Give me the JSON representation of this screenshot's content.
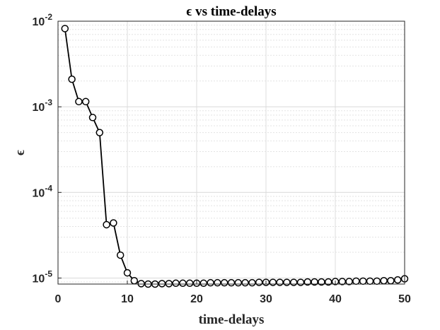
{
  "chart_data": {
    "type": "line",
    "title": "ϵ vs time-delays",
    "xlabel": "time-delays",
    "ylabel": "ϵ",
    "xlim": [
      0,
      50
    ],
    "ylim": [
      8.5e-06,
      0.01
    ],
    "yscale": "log",
    "grid": true,
    "x_ticks": [
      "0",
      "10",
      "20",
      "30",
      "40",
      "50"
    ],
    "y_ticks": [
      {
        "value": 1e-05,
        "base": "10",
        "exp": "-5"
      },
      {
        "value": 0.0001,
        "base": "10",
        "exp": "-4"
      },
      {
        "value": 0.001,
        "base": "10",
        "exp": "-3"
      },
      {
        "value": 0.01,
        "base": "10",
        "exp": "-2"
      }
    ],
    "marker": "open-circle",
    "line_color": "#000000",
    "series": [
      {
        "x": [
          1,
          2,
          3,
          4,
          5,
          6,
          7,
          8,
          9,
          10,
          11,
          12,
          13,
          14,
          15,
          16,
          17,
          18,
          19,
          20,
          21,
          22,
          23,
          24,
          25,
          26,
          27,
          28,
          29,
          30,
          31,
          32,
          33,
          34,
          35,
          36,
          37,
          38,
          39,
          40,
          41,
          42,
          43,
          44,
          45,
          46,
          47,
          48,
          49,
          50
        ],
        "values": [
          0.0082,
          0.0021,
          0.00115,
          0.00115,
          0.00075,
          0.0005,
          4.2e-05,
          4.4e-05,
          1.85e-05,
          1.15e-05,
          9.3e-06,
          8.6e-06,
          8.5e-06,
          8.5e-06,
          8.6e-06,
          8.6e-06,
          8.7e-06,
          8.7e-06,
          8.7e-06,
          8.7e-06,
          8.7e-06,
          8.8e-06,
          8.8e-06,
          8.8e-06,
          8.8e-06,
          8.8e-06,
          8.8e-06,
          8.8e-06,
          8.9e-06,
          8.9e-06,
          8.9e-06,
          8.9e-06,
          8.9e-06,
          8.9e-06,
          8.9e-06,
          9e-06,
          9e-06,
          9e-06,
          9e-06,
          9.1e-06,
          9.1e-06,
          9.1e-06,
          9.2e-06,
          9.2e-06,
          9.2e-06,
          9.2e-06,
          9.3e-06,
          9.3e-06,
          9.5e-06,
          9.8e-06
        ]
      }
    ]
  }
}
